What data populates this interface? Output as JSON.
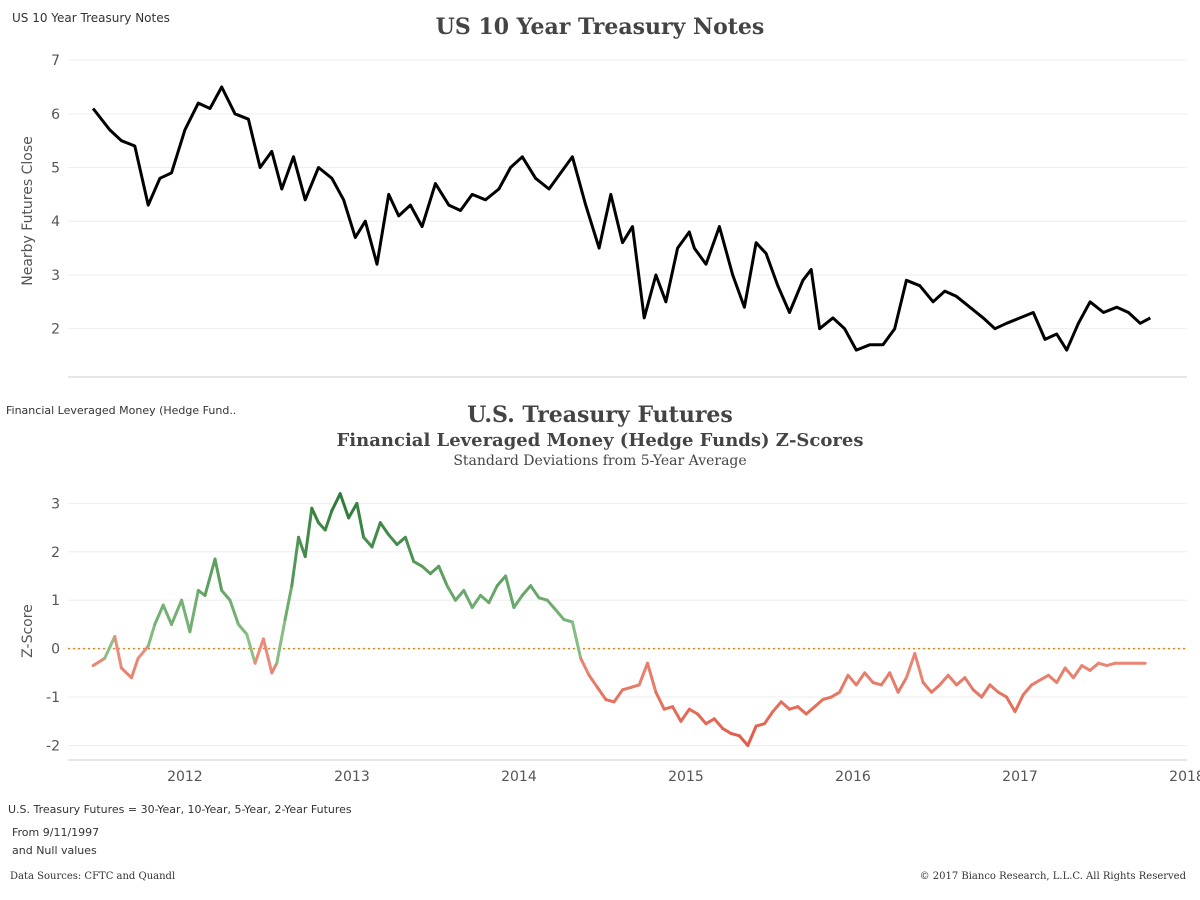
{
  "top_sheet_label": "US 10 Year Treasury Notes",
  "bottom_sheet_label": "Financial Leveraged Money (Hedge Fund..",
  "chart_data": [
    {
      "type": "line",
      "title": "US 10 Year Treasury Notes",
      "xlabel": "",
      "ylabel": "Nearby Futures Close",
      "ylim": [
        1.1,
        7.3
      ],
      "yticks": [
        "7",
        "6",
        "5",
        "4",
        "3",
        "2"
      ],
      "grid": true,
      "series": [
        {
          "color": "#000000",
          "x": [
            2011.45,
            2011.55,
            2011.62,
            2011.7,
            2011.78,
            2011.85,
            2011.92,
            2012.0,
            2012.08,
            2012.15,
            2012.22,
            2012.3,
            2012.38,
            2012.45,
            2012.52,
            2012.58,
            2012.65,
            2012.72,
            2012.8,
            2012.88,
            2012.95,
            2013.02,
            2013.08,
            2013.15,
            2013.22,
            2013.28,
            2013.35,
            2013.42,
            2013.5,
            2013.58,
            2013.65,
            2013.72,
            2013.8,
            2013.88,
            2013.95,
            2014.02,
            2014.1,
            2014.18,
            2014.25,
            2014.32,
            2014.4,
            2014.48,
            2014.55,
            2014.62,
            2014.68,
            2014.75,
            2014.82,
            2014.88,
            2014.95,
            2015.02,
            2015.05,
            2015.12,
            2015.2,
            2015.28,
            2015.35,
            2015.42,
            2015.48,
            2015.55,
            2015.62,
            2015.7,
            2015.75,
            2015.8,
            2015.88,
            2015.95,
            2016.02,
            2016.1,
            2016.18,
            2016.25,
            2016.32,
            2016.4,
            2016.48,
            2016.55,
            2016.62,
            2016.7,
            2016.78,
            2016.85,
            2016.92,
            2017.0,
            2017.08,
            2017.15,
            2017.22,
            2017.28,
            2017.35,
            2017.42,
            2017.5,
            2017.58,
            2017.65,
            2017.72,
            2017.78
          ],
          "values": [
            6.1,
            5.7,
            5.5,
            5.4,
            4.3,
            4.8,
            4.9,
            5.7,
            6.2,
            6.1,
            6.5,
            6.0,
            5.9,
            5.0,
            5.3,
            4.6,
            5.2,
            4.4,
            5.0,
            4.8,
            4.4,
            3.7,
            4.0,
            3.2,
            4.5,
            4.1,
            4.3,
            3.9,
            4.7,
            4.3,
            4.2,
            4.5,
            4.4,
            4.6,
            5.0,
            5.2,
            4.8,
            4.6,
            4.9,
            5.2,
            4.3,
            3.5,
            4.5,
            3.6,
            3.9,
            2.2,
            3.0,
            2.5,
            3.5,
            3.8,
            3.5,
            3.2,
            3.9,
            3.0,
            2.4,
            3.6,
            3.4,
            2.8,
            2.3,
            2.9,
            3.1,
            2.0,
            2.2,
            2.0,
            1.6,
            1.7,
            1.7,
            2.0,
            2.9,
            2.8,
            2.5,
            2.7,
            2.6,
            2.4,
            2.2,
            2.0,
            2.1,
            2.2,
            2.3,
            1.8,
            1.9,
            1.6,
            2.1,
            2.5,
            2.3,
            2.4,
            2.3,
            2.1,
            2.2
          ]
        }
      ]
    },
    {
      "type": "line",
      "title": "U.S. Treasury Futures",
      "subtitle": "Financial Leveraged Money (Hedge Funds) Z-Scores",
      "subtitle2": "Standard Deviations from 5-Year Average",
      "xlabel": "",
      "ylabel": "Z-Score",
      "ylim": [
        -2.3,
        3.4
      ],
      "yticks": [
        "3",
        "2",
        "1",
        "0",
        "-1",
        "-2"
      ],
      "xticks": [
        "2012",
        "2013",
        "2014",
        "2015",
        "2016",
        "2017",
        "2018"
      ],
      "xlim": [
        2011.3,
        2018.0
      ],
      "reference_line": 0,
      "reference_color": "#d98c1a",
      "positive_color": "#2e7d3a",
      "negative_color": "#e05a45",
      "grid": true,
      "series": [
        {
          "x": [
            2011.45,
            2011.52,
            2011.58,
            2011.62,
            2011.68,
            2011.72,
            2011.78,
            2011.82,
            2011.87,
            2011.92,
            2011.98,
            2012.03,
            2012.08,
            2012.12,
            2012.18,
            2012.22,
            2012.27,
            2012.32,
            2012.37,
            2012.42,
            2012.47,
            2012.52,
            2012.55,
            2012.6,
            2012.64,
            2012.68,
            2012.72,
            2012.76,
            2012.8,
            2012.84,
            2012.88,
            2012.93,
            2012.98,
            2013.03,
            2013.07,
            2013.12,
            2013.17,
            2013.22,
            2013.27,
            2013.32,
            2013.37,
            2013.42,
            2013.47,
            2013.52,
            2013.57,
            2013.62,
            2013.67,
            2013.72,
            2013.77,
            2013.82,
            2013.87,
            2013.92,
            2013.97,
            2014.02,
            2014.07,
            2014.12,
            2014.17,
            2014.22,
            2014.27,
            2014.32,
            2014.37,
            2014.42,
            2014.47,
            2014.52,
            2014.57,
            2014.62,
            2014.67,
            2014.72,
            2014.77,
            2014.82,
            2014.87,
            2014.92,
            2014.97,
            2015.02,
            2015.07,
            2015.12,
            2015.17,
            2015.22,
            2015.27,
            2015.32,
            2015.37,
            2015.42,
            2015.47,
            2015.52,
            2015.57,
            2015.62,
            2015.67,
            2015.72,
            2015.77,
            2015.82,
            2015.87,
            2015.92,
            2015.97,
            2016.02,
            2016.07,
            2016.12,
            2016.17,
            2016.22,
            2016.27,
            2016.32,
            2016.37,
            2016.42,
            2016.47,
            2016.52,
            2016.57,
            2016.62,
            2016.67,
            2016.72,
            2016.77,
            2016.82,
            2016.87,
            2016.92,
            2016.97,
            2017.02,
            2017.07,
            2017.12,
            2017.17,
            2017.22,
            2017.27,
            2017.32,
            2017.37,
            2017.42,
            2017.47,
            2017.52,
            2017.57,
            2017.62,
            2017.67,
            2017.72,
            2017.75
          ],
          "values": [
            -0.35,
            -0.2,
            0.25,
            -0.4,
            -0.6,
            -0.2,
            0.05,
            0.5,
            0.9,
            0.5,
            1.0,
            0.35,
            1.2,
            1.1,
            1.85,
            1.2,
            1.0,
            0.5,
            0.3,
            -0.3,
            0.2,
            -0.5,
            -0.3,
            0.6,
            1.3,
            2.3,
            1.9,
            2.9,
            2.6,
            2.45,
            2.85,
            3.2,
            2.7,
            3.0,
            2.3,
            2.1,
            2.6,
            2.35,
            2.15,
            2.3,
            1.8,
            1.7,
            1.55,
            1.7,
            1.3,
            1.0,
            1.2,
            0.85,
            1.1,
            0.95,
            1.3,
            1.5,
            0.85,
            1.1,
            1.3,
            1.05,
            1.0,
            0.8,
            0.6,
            0.55,
            -0.2,
            -0.55,
            -0.8,
            -1.05,
            -1.1,
            -0.85,
            -0.8,
            -0.75,
            -0.3,
            -0.9,
            -1.25,
            -1.2,
            -1.5,
            -1.25,
            -1.35,
            -1.55,
            -1.45,
            -1.65,
            -1.75,
            -1.8,
            -2.0,
            -1.6,
            -1.55,
            -1.3,
            -1.1,
            -1.25,
            -1.2,
            -1.35,
            -1.2,
            -1.05,
            -1.0,
            -0.9,
            -0.55,
            -0.75,
            -0.5,
            -0.7,
            -0.75,
            -0.5,
            -0.9,
            -0.6,
            -0.1,
            -0.7,
            -0.9,
            -0.75,
            -0.55,
            -0.75,
            -0.6,
            -0.85,
            -1.0,
            -0.75,
            -0.9,
            -1.0,
            -1.3,
            -0.95,
            -0.75,
            -0.65,
            -0.55,
            -0.7,
            -0.4,
            -0.6,
            -0.35,
            -0.45,
            -0.3,
            -0.35,
            -0.3,
            -0.3,
            -0.3,
            -0.3,
            -0.3
          ]
        }
      ]
    }
  ],
  "footer": {
    "line1": "U.S. Treasury Futures = 30-Year, 10-Year, 5-Year, 2-Year Futures",
    "line2": "From 9/11/1997",
    "line3": "and Null values",
    "sources": "Data Sources: CFTC and Quandl",
    "copyright": "© 2017 Bianco Research, L.L.C. All Rights Reserved"
  }
}
